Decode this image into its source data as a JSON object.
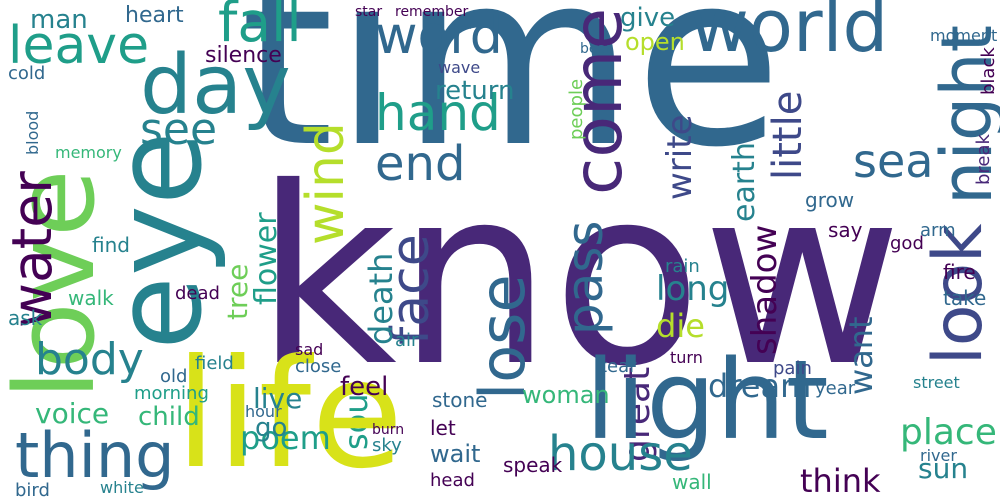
{
  "wordcloud": {
    "colors": {
      "c1": "#440154",
      "c2": "#482878",
      "c3": "#3e4989",
      "c4": "#31688e",
      "c5": "#26828e",
      "c6": "#1f9e89",
      "c7": "#35b779",
      "c8": "#6ece58",
      "c9": "#b5de2b",
      "c10": "#fde725",
      "background": "#ffffff"
    },
    "words": [
      "time",
      "know",
      "love",
      "eye",
      "life",
      "light",
      "day",
      "world",
      "word",
      "look",
      "night",
      "come",
      "hand",
      "fall",
      "leave",
      "see",
      "thing",
      "water",
      "lose",
      "wind",
      "end",
      "sea",
      "face",
      "pass",
      "body",
      "place",
      "house",
      "poem",
      "sun",
      "live",
      "heart",
      "man",
      "give",
      "open",
      "silence",
      "return",
      "wave",
      "star",
      "remember",
      "little",
      "write",
      "earth",
      "flower",
      "tree",
      "long",
      "die",
      "death",
      "soul",
      "feel",
      "woman",
      "great",
      "dream",
      "shadow",
      "want",
      "grow",
      "say",
      "think",
      "voice",
      "child",
      "go",
      "wait",
      "speak",
      "let",
      "stone",
      "sky",
      "morning",
      "walk",
      "find",
      "ask",
      "cold",
      "blood",
      "memory",
      "old",
      "field",
      "hour",
      "sad",
      "close",
      "air",
      "rain",
      "turn",
      "street",
      "river",
      "fire",
      "take",
      "pain",
      "year",
      "arm",
      "god",
      "moment",
      "black",
      "break",
      "dead",
      "bird",
      "white",
      "tear",
      "head",
      "wall",
      "burn",
      "bear",
      "people"
    ]
  }
}
